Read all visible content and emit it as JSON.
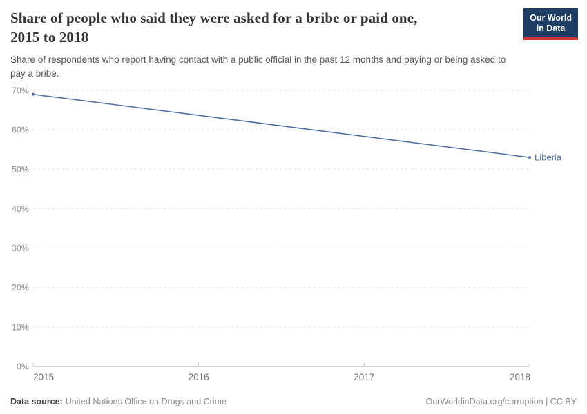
{
  "header": {
    "title": "Share of people who said they were asked for a bribe or paid one,\n2015 to 2018",
    "subtitle": "Share of respondents who report having contact with a public official in the past 12 months and paying or being asked to\npay a bribe."
  },
  "logo": {
    "text": "Our World\nin Data",
    "bg_color": "#1d3d63",
    "stripe_color": "#cc342a"
  },
  "chart_data": {
    "type": "line",
    "title": "Share of people who said they were asked for a bribe or paid one, 2015 to 2018",
    "x": [
      2015,
      2018
    ],
    "series": [
      {
        "name": "Liberia",
        "color": "#4a69a5",
        "values": [
          69,
          53
        ]
      }
    ],
    "x_ticks": [
      2015,
      2016,
      2017,
      2018
    ],
    "y_ticks": [
      0,
      10,
      20,
      30,
      40,
      50,
      60,
      70
    ],
    "y_tick_suffix": "%",
    "xlim": [
      2015,
      2018
    ],
    "ylim": [
      0,
      70
    ],
    "grid": "horizontal-dashed",
    "legend": "entity-label-at-line-end",
    "gridline_color": "#dedede",
    "axis_color": "#a0a0a0",
    "tick_color": "#bcbcbc"
  },
  "footer": {
    "datasource_label": "Data source:",
    "datasource_value": "United Nations Office on Drugs and Crime",
    "credit": "OurWorldinData.org/corruption | CC BY"
  }
}
